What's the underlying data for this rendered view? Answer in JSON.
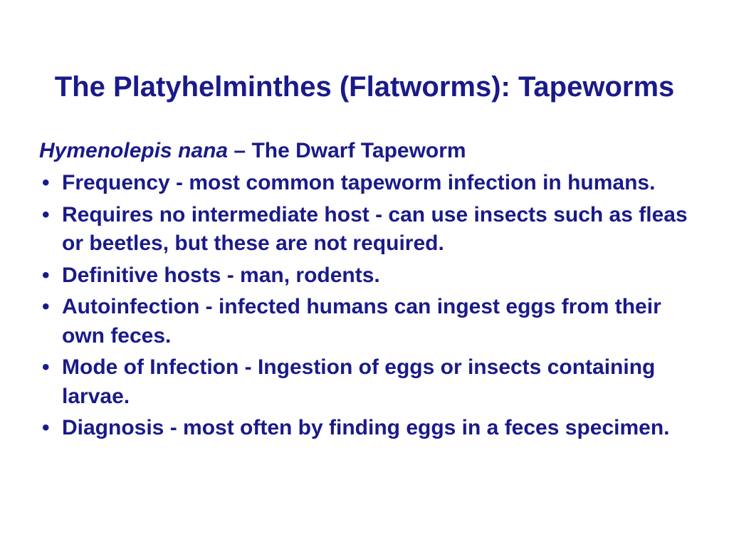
{
  "colors": {
    "text": "#1a1a8a",
    "background": "#ffffff"
  },
  "typography": {
    "title_fontsize": 40,
    "subtitle_fontsize": 30,
    "body_fontsize": 30,
    "bullet_fontsize": 30
  },
  "slide": {
    "title": "The Platyhelminthes (Flatworms): Tapeworms",
    "subtitle_italic": "Hymenolepis nana",
    "subtitle_separator": " – ",
    "subtitle_rest": "The Dwarf Tapeworm",
    "bullets": [
      "Frequency - most common tapeworm infection in humans.",
      "Requires no intermediate host - can use insects such as fleas or beetles, but these are not required.",
      "Definitive hosts - man, rodents.",
      "Autoinfection - infected humans can ingest eggs from their own feces.",
      "Mode of Infection - Ingestion of eggs or insects containing larvae.",
      "Diagnosis - most often by finding eggs in a feces specimen."
    ]
  }
}
